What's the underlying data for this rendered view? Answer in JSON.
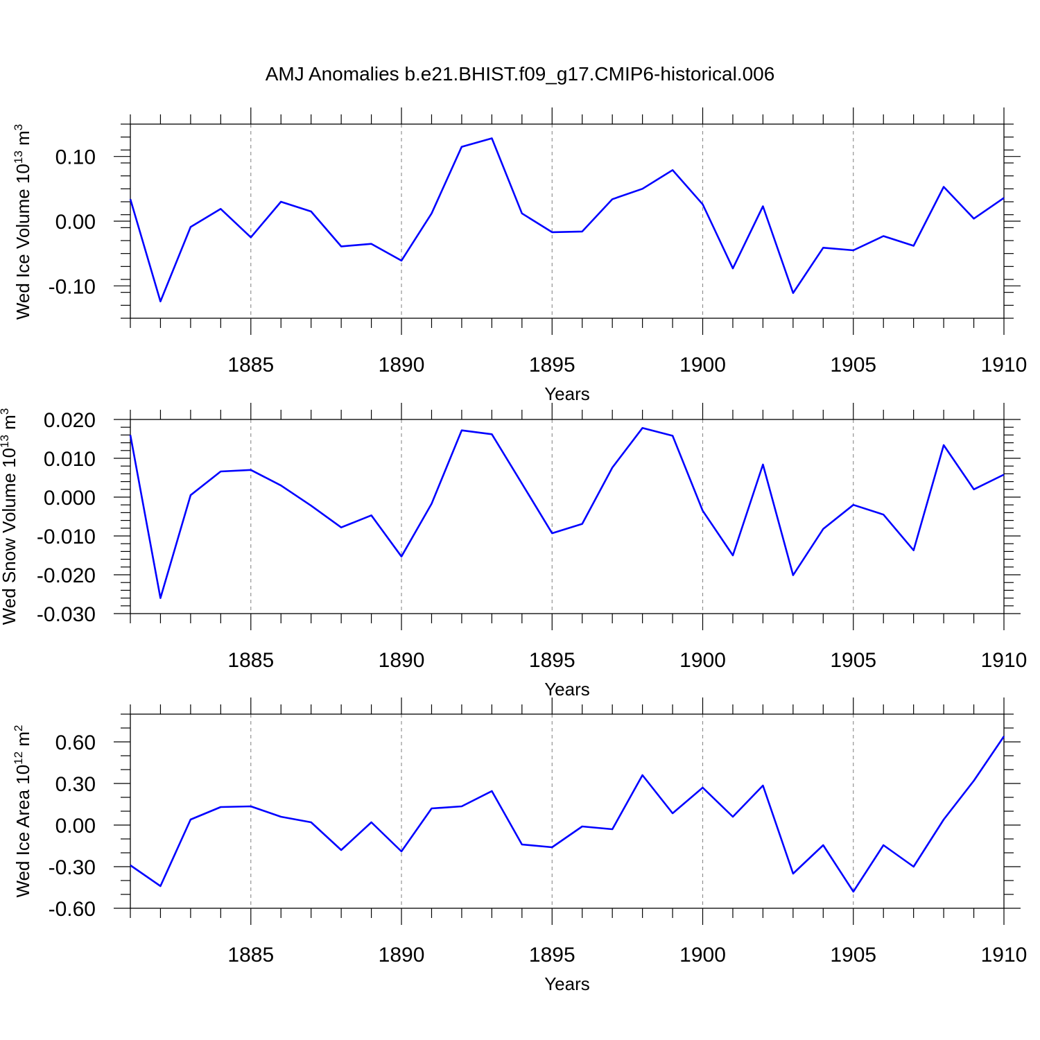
{
  "chart_data": {
    "type": "line",
    "title": "AMJ Anomalies b.e21.BHIST.f09_g17.CMIP6-historical.006",
    "series_color": "#0000ff",
    "x": [
      1881,
      1882,
      1883,
      1884,
      1885,
      1886,
      1887,
      1888,
      1889,
      1890,
      1891,
      1892,
      1893,
      1894,
      1895,
      1896,
      1897,
      1898,
      1899,
      1900,
      1901,
      1902,
      1903,
      1904,
      1905,
      1906,
      1907,
      1908,
      1909,
      1910
    ],
    "xlim": [
      1881,
      1910
    ],
    "xticks": [
      1885,
      1890,
      1895,
      1900,
      1905,
      1910
    ],
    "xlabel": "Years",
    "panels": [
      {
        "ylabel": "Wed Ice Volume",
        "units_base": "10",
        "units_exp": "13",
        "units_unit": "m",
        "units_unit_exp": "3",
        "ylim": [
          -0.15,
          0.15
        ],
        "yticks": [
          -0.1,
          0.0,
          0.1
        ],
        "ytick_labels": [
          "-0.10",
          "0.00",
          "0.10"
        ],
        "y_minor_step": 0.02,
        "values": [
          0.034,
          -0.124,
          -0.009,
          0.019,
          -0.025,
          0.03,
          0.015,
          -0.039,
          -0.035,
          -0.061,
          0.012,
          0.115,
          0.128,
          0.012,
          -0.017,
          -0.016,
          0.034,
          0.05,
          0.079,
          0.026,
          -0.073,
          0.023,
          -0.111,
          -0.041,
          -0.045,
          -0.023,
          -0.038,
          0.053,
          0.004,
          0.036
        ]
      },
      {
        "ylabel": "Wed Snow Volume",
        "units_base": "10",
        "units_exp": "13",
        "units_unit": "m",
        "units_unit_exp": "3",
        "ylim": [
          -0.03,
          0.02
        ],
        "yticks": [
          -0.03,
          -0.02,
          -0.01,
          0.0,
          0.01,
          0.02
        ],
        "ytick_labels": [
          "-0.030",
          "-0.020",
          "-0.010",
          "0.000",
          "0.010",
          "0.020"
        ],
        "y_minor_step": 0.002,
        "values": [
          0.016,
          -0.026,
          0.0005,
          0.0066,
          0.007,
          0.003,
          -0.0022,
          -0.0078,
          -0.0047,
          -0.0153,
          -0.0017,
          0.0172,
          0.0162,
          0.0035,
          -0.0093,
          -0.0069,
          0.0076,
          0.0178,
          0.0158,
          -0.0035,
          -0.015,
          0.0084,
          -0.0201,
          -0.0082,
          -0.002,
          -0.0045,
          -0.0137,
          0.0134,
          0.002,
          0.0058
        ]
      },
      {
        "ylabel": "Wed Ice Area",
        "units_base": "10",
        "units_exp": "12",
        "units_unit": "m",
        "units_unit_exp": "2",
        "ylim": [
          -0.6,
          0.8
        ],
        "yticks": [
          -0.6,
          -0.3,
          0.0,
          0.3,
          0.6
        ],
        "ytick_labels": [
          "-0.60",
          "-0.30",
          "0.00",
          "0.30",
          "0.60"
        ],
        "y_minor_step": 0.1,
        "values": [
          -0.29,
          -0.44,
          0.04,
          0.13,
          0.135,
          0.06,
          0.02,
          -0.18,
          0.02,
          -0.19,
          0.12,
          0.135,
          0.245,
          -0.14,
          -0.16,
          -0.01,
          -0.03,
          0.36,
          0.085,
          0.27,
          0.06,
          0.285,
          -0.35,
          -0.145,
          -0.48,
          -0.145,
          -0.3,
          0.04,
          0.32,
          0.64
        ]
      }
    ]
  }
}
